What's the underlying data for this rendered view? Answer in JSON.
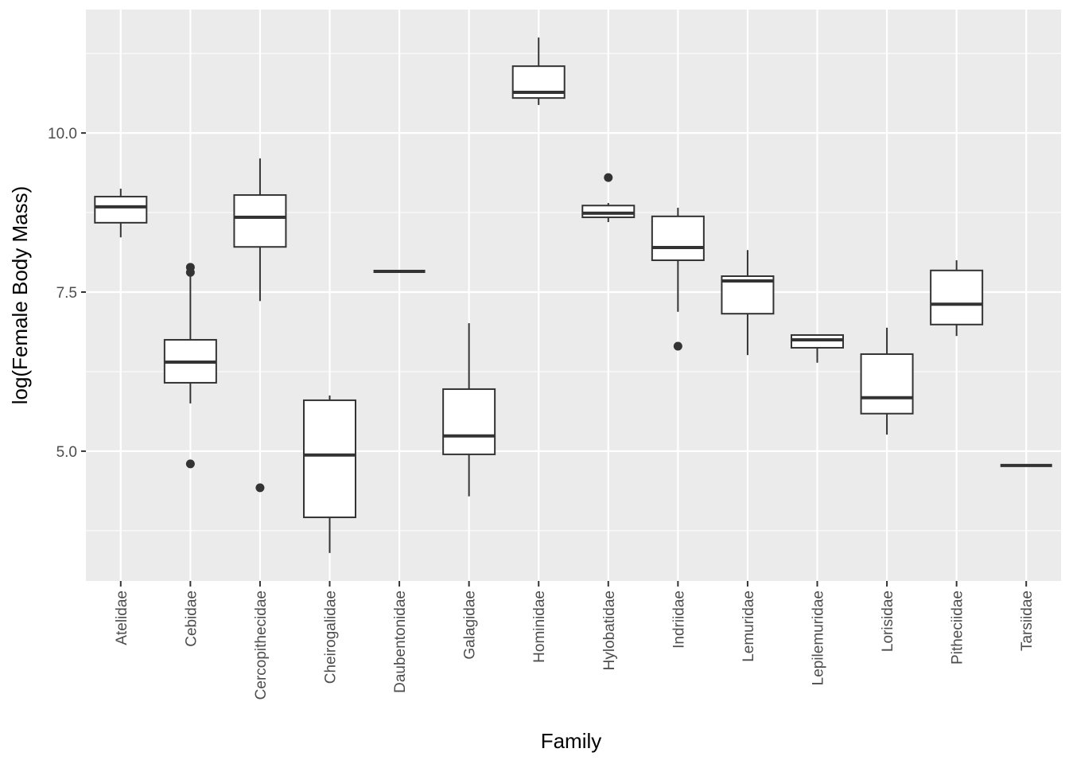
{
  "chart_data": {
    "type": "boxplot",
    "title": "",
    "xlabel": "Family",
    "ylabel": "log(Female Body Mass)",
    "ylim": [
      2.96,
      11.94
    ],
    "yticks": [
      5.0,
      7.5,
      10.0
    ],
    "ytick_labels": [
      "5.0",
      "7.5",
      "10.0"
    ],
    "grid": true,
    "categories": [
      "Atelidae",
      "Cebidae",
      "Cercopithecidae",
      "Cheirogalidae",
      "Daubentonidae",
      "Galagidae",
      "Hominidae",
      "Hylobatidae",
      "Indriidae",
      "Lemuridae",
      "Lepilemuridae",
      "Lorisidae",
      "Pitheciidae",
      "Tarsiidae"
    ],
    "boxes": [
      {
        "low": 8.36,
        "q1": 8.59,
        "median": 8.84,
        "q3": 9.0,
        "high": 9.125,
        "outliers": []
      },
      {
        "low": 5.75,
        "q1": 6.075,
        "median": 6.4,
        "q3": 6.75,
        "high": 7.81,
        "outliers": [
          7.89,
          7.81,
          4.8
        ]
      },
      {
        "low": 7.36,
        "q1": 8.21,
        "median": 8.675,
        "q3": 9.025,
        "high": 9.6,
        "outliers": [
          4.425
        ]
      },
      {
        "low": 3.4,
        "q1": 3.96,
        "median": 4.94,
        "q3": 5.8,
        "high": 5.875,
        "outliers": []
      },
      {
        "low": 7.825,
        "q1": 7.825,
        "median": 7.825,
        "q3": 7.825,
        "high": 7.825,
        "outliers": []
      },
      {
        "low": 4.29,
        "q1": 4.95,
        "median": 5.24,
        "q3": 5.975,
        "high": 7.01,
        "outliers": []
      },
      {
        "low": 10.44,
        "q1": 10.55,
        "median": 10.64,
        "q3": 11.05,
        "high": 11.5,
        "outliers": []
      },
      {
        "low": 8.6,
        "q1": 8.675,
        "median": 8.74,
        "q3": 8.86,
        "high": 8.9,
        "outliers": [
          9.3
        ]
      },
      {
        "low": 7.19,
        "q1": 8.0,
        "median": 8.2,
        "q3": 8.69,
        "high": 8.825,
        "outliers": [
          6.65
        ]
      },
      {
        "low": 6.51,
        "q1": 7.16,
        "median": 7.675,
        "q3": 7.75,
        "high": 8.16,
        "outliers": []
      },
      {
        "low": 6.39,
        "q1": 6.625,
        "median": 6.75,
        "q3": 6.825,
        "high": 6.83,
        "outliers": []
      },
      {
        "low": 5.26,
        "q1": 5.59,
        "median": 5.84,
        "q3": 6.525,
        "high": 6.94,
        "outliers": []
      },
      {
        "low": 6.81,
        "q1": 6.99,
        "median": 7.31,
        "q3": 7.84,
        "high": 8.0,
        "outliers": []
      },
      {
        "low": 4.775,
        "q1": 4.775,
        "median": 4.775,
        "q3": 4.775,
        "high": 4.775,
        "outliers": []
      }
    ],
    "colors": {
      "panel": "#EBEBEB",
      "grid": "#FFFFFF",
      "box_fill": "#FFFFFF",
      "line": "#333333",
      "text": "#4D4D4D",
      "title": "#000000"
    }
  }
}
